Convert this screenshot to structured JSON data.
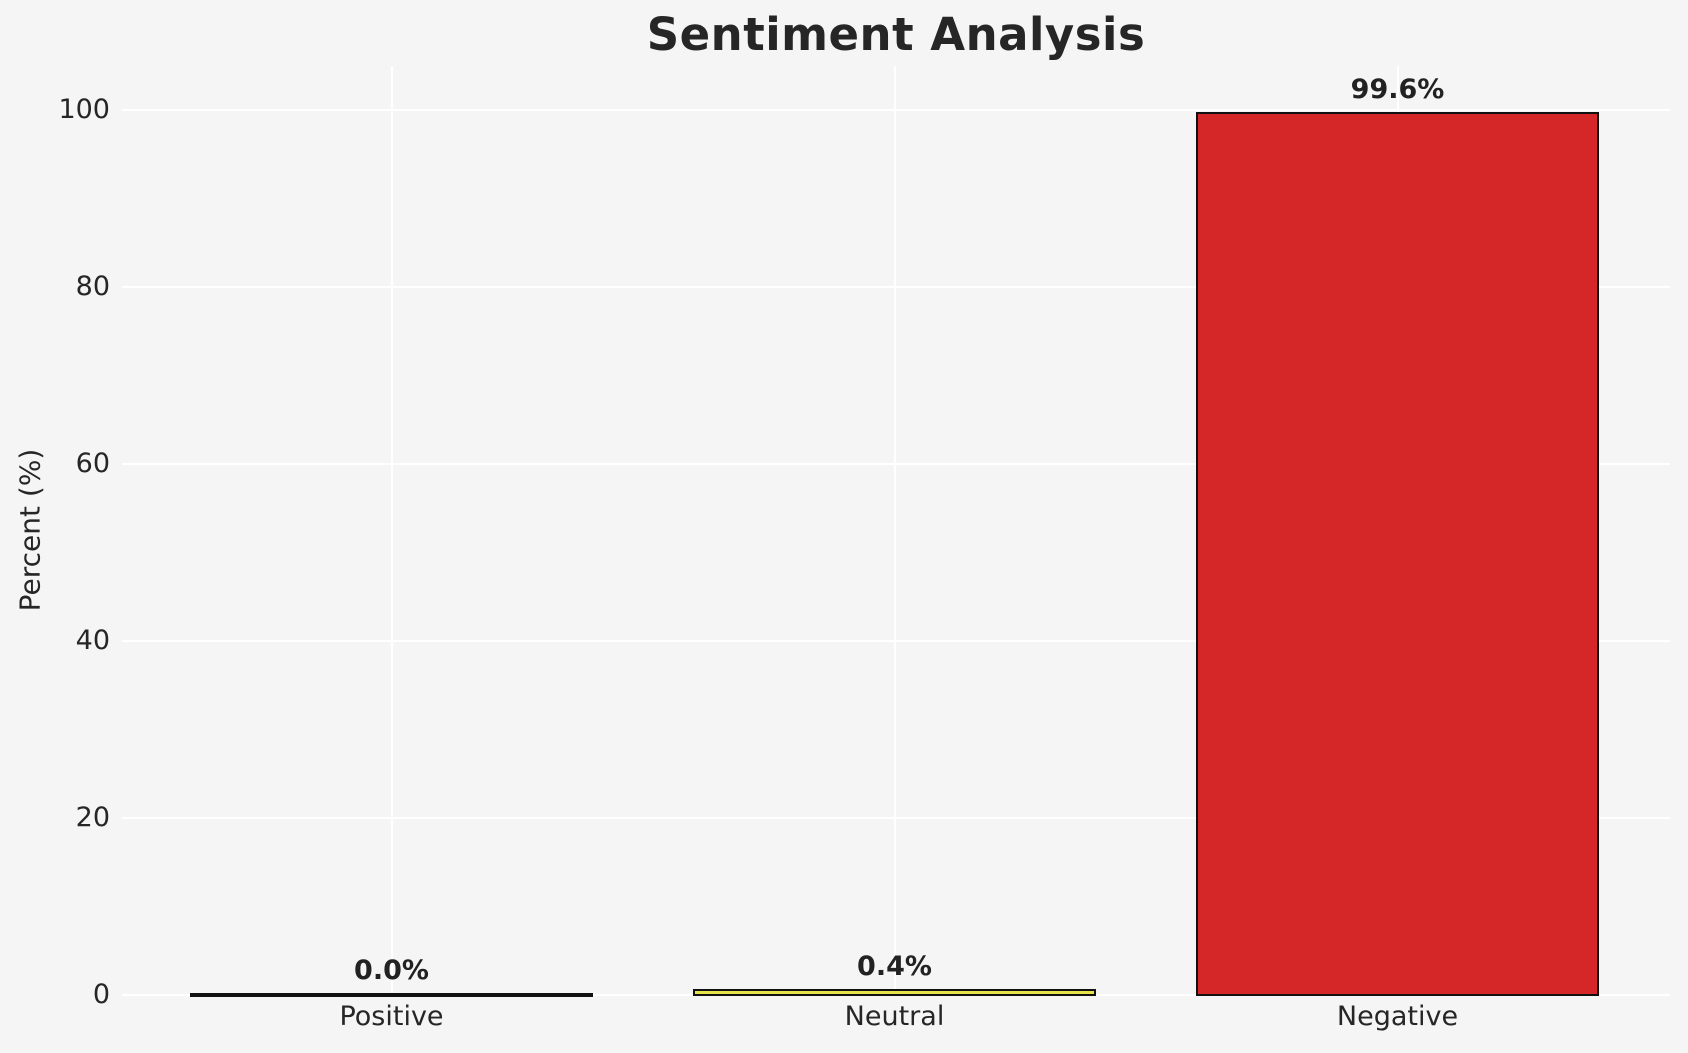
{
  "chart_data": {
    "type": "bar",
    "title": "Sentiment Analysis",
    "ylabel": "Percent (%)",
    "xlabel": "",
    "categories": [
      "Positive",
      "Neutral",
      "Negative"
    ],
    "values": [
      0.0,
      0.4,
      99.6
    ],
    "value_labels": [
      "0.0%",
      "0.4%",
      "99.6%"
    ],
    "yticks": [
      0,
      20,
      40,
      60,
      80,
      100
    ],
    "ylim": [
      0,
      105
    ],
    "grid": true,
    "legend": false,
    "colors": {
      "background": "#f5f5f6",
      "gridline": "#ffffff",
      "bar_edge": "#111111",
      "bar_fills": [
        "none",
        "#e6e24a",
        "#d62728"
      ],
      "text": "#262626"
    }
  }
}
